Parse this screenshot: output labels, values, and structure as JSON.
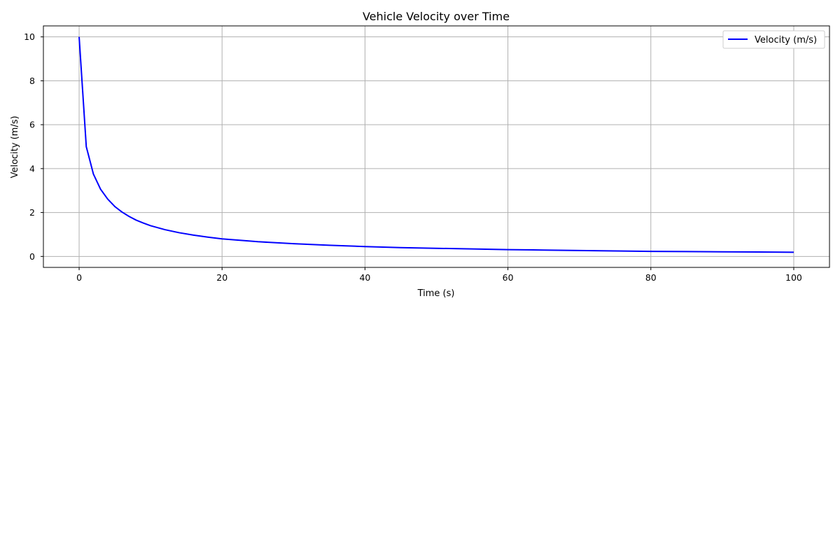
{
  "chart_data": {
    "type": "line",
    "title": "Vehicle Velocity over Time",
    "xlabel": "Time (s)",
    "ylabel": "Velocity (m/s)",
    "xlim": [
      -5,
      105
    ],
    "ylim": [
      -0.5,
      10.5
    ],
    "xticks": [
      0,
      20,
      40,
      60,
      80,
      100
    ],
    "yticks": [
      0,
      2,
      4,
      6,
      8,
      10
    ],
    "grid": true,
    "legend_position": "top-right",
    "series": [
      {
        "name": "Velocity (m/s)",
        "color": "#0000ff",
        "x": [
          0,
          1,
          2,
          3,
          4,
          5,
          6,
          7,
          8,
          9,
          10,
          12,
          14,
          16,
          18,
          20,
          25,
          30,
          35,
          40,
          45,
          50,
          55,
          60,
          65,
          70,
          75,
          80,
          85,
          90,
          95,
          100
        ],
        "y": [
          10,
          5.0,
          3.75,
          3.06,
          2.61,
          2.27,
          2.02,
          1.82,
          1.65,
          1.52,
          1.4,
          1.22,
          1.08,
          0.97,
          0.88,
          0.8,
          0.67,
          0.58,
          0.51,
          0.45,
          0.4,
          0.37,
          0.34,
          0.31,
          0.29,
          0.27,
          0.25,
          0.23,
          0.22,
          0.21,
          0.2,
          0.19
        ]
      }
    ]
  }
}
